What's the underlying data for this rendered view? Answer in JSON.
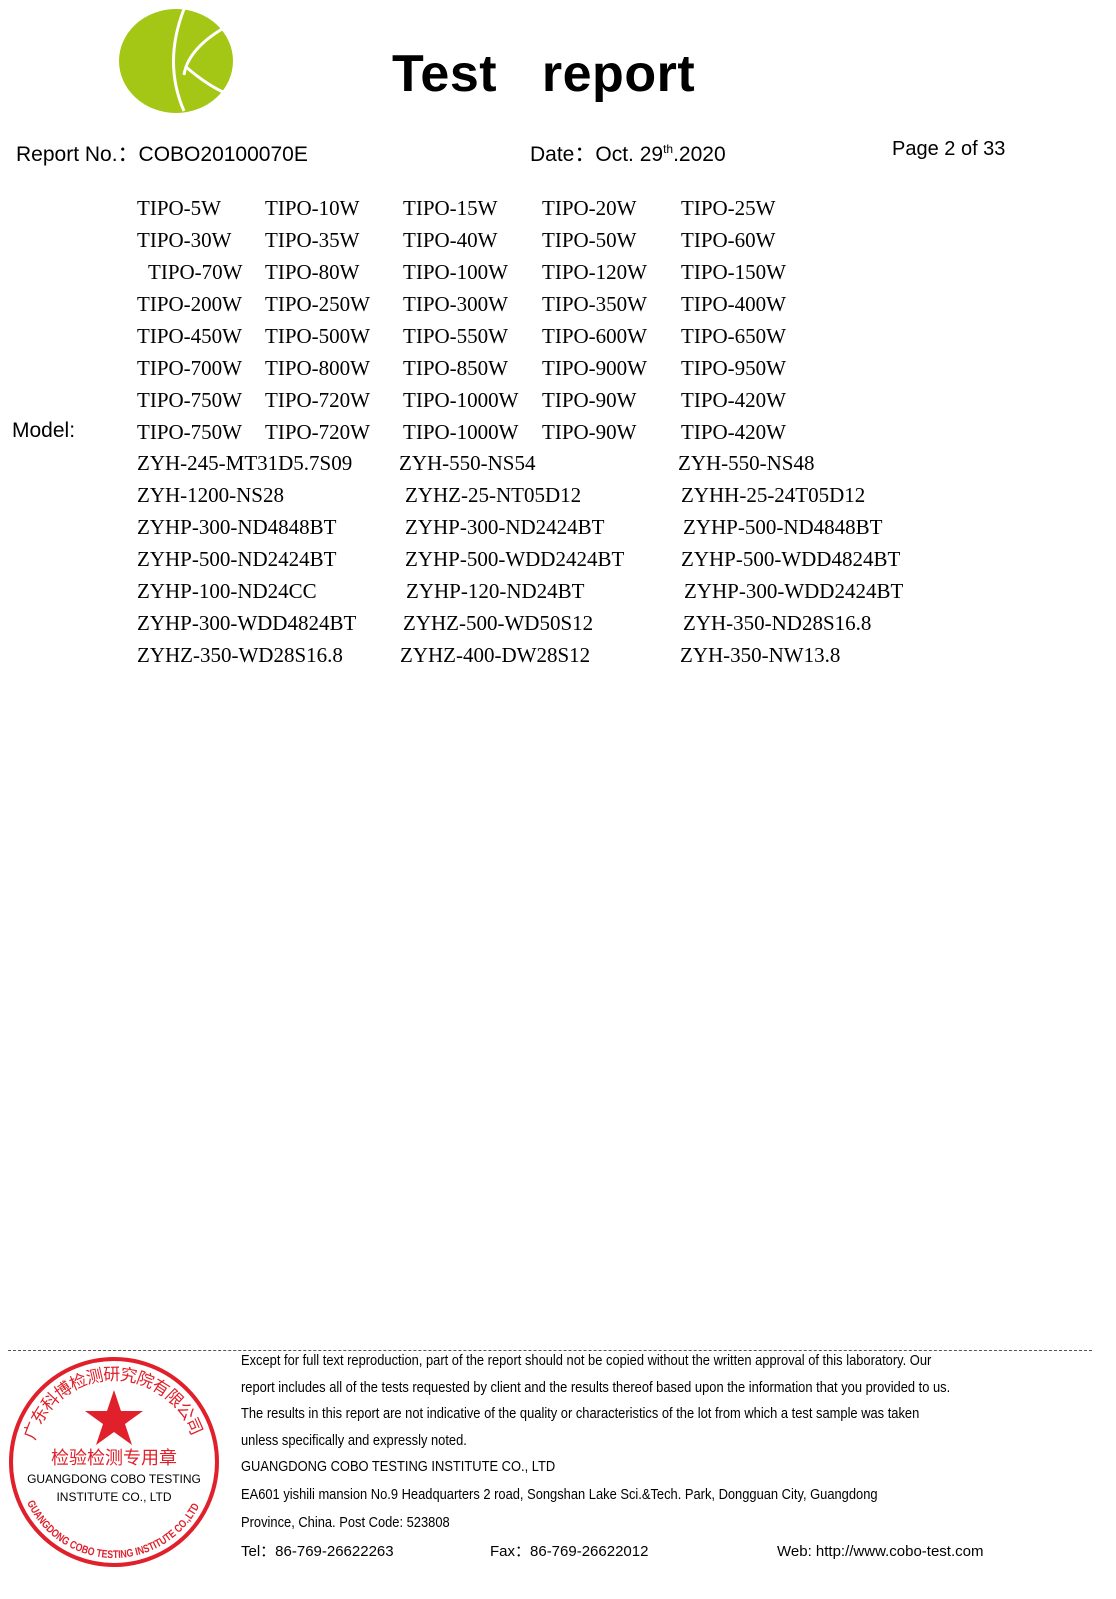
{
  "header": {
    "title": "Test   report",
    "report_no_label": "Report No.：",
    "report_no": "COBO20100070E",
    "date_label": "Date：",
    "date_prefix": "Oct. 29",
    "date_sup": "th",
    "date_suffix": ".2020",
    "page": "Page 2 of 33",
    "logo_color": "#a4c614"
  },
  "model": {
    "label": "Model:",
    "tipo_rows": [
      [
        "TIPO-5W",
        "TIPO-10W",
        "TIPO-15W",
        "TIPO-20W",
        "TIPO-25W"
      ],
      [
        "TIPO-30W",
        "TIPO-35W",
        "TIPO-40W",
        "TIPO-50W",
        "TIPO-60W"
      ],
      [
        "TIPO-70W",
        "TIPO-80W",
        "TIPO-100W",
        "TIPO-120W",
        "TIPO-150W"
      ],
      [
        "TIPO-200W",
        "TIPO-250W",
        "TIPO-300W",
        "TIPO-350W",
        "TIPO-400W"
      ],
      [
        "TIPO-450W",
        "TIPO-500W",
        "TIPO-550W",
        "TIPO-600W",
        "TIPO-650W"
      ],
      [
        "TIPO-700W",
        "TIPO-800W",
        "TIPO-850W",
        "TIPO-900W",
        "TIPO-950W"
      ],
      [
        "TIPO-750W",
        "TIPO-720W",
        "TIPO-1000W",
        "TIPO-90W",
        "TIPO-420W"
      ],
      [
        "TIPO-750W",
        "TIPO-720W",
        "TIPO-1000W",
        "TIPO-90W",
        "TIPO-420W"
      ]
    ],
    "zyh_rows": [
      [
        "ZYH-245-MT31D5.7S09",
        "ZYH-550-NS54",
        "ZYH-550-NS48"
      ],
      [
        "ZYH-1200-NS28",
        "ZYHZ-25-NT05D12",
        "ZYHH-25-24T05D12"
      ],
      [
        "ZYHP-300-ND4848BT",
        "ZYHP-300-ND2424BT",
        "ZYHP-500-ND4848BT"
      ],
      [
        "ZYHP-500-ND2424BT",
        "ZYHP-500-WDD2424BT",
        "ZYHP-500-WDD4824BT"
      ],
      [
        "ZYHP-100-ND24CC",
        "ZYHP-120-ND24BT",
        "ZYHP-300-WDD2424BT"
      ],
      [
        "ZYHP-300-WDD4824BT",
        "ZYHZ-500-WD50S12",
        "ZYH-350-ND28S16.8"
      ],
      [
        "ZYHZ-350-WD28S16.8",
        "ZYHZ-400-DW28S12",
        "ZYH-350-NW13.8"
      ]
    ]
  },
  "footer": {
    "lines": [
      "Except for full text reproduction, part of the report should not be copied without the written approval of this laboratory. Our",
      "report includes all of the tests requested by client and the results thereof based upon the information that you provided to us.",
      "The results in this report are not indicative of the quality or characteristics of the lot from which a test sample was taken",
      "unless specifically and expressly noted.",
      "GUANGDONG COBO TESTING INSTITUTE CO., LTD",
      "EA601 yishili mansion No.9 Headquarters 2 road, Songshan Lake Sci.&Tech. Park, Dongguan City, Guangdong",
      "Province, China. Post Code: 523808"
    ],
    "tel": "Tel：86-769-26622263",
    "fax": "Fax：86-769-26622012",
    "web": "Web: http://www.cobo-test.com",
    "stamp": {
      "color": "#e0202a",
      "ring_cn": "广东科博检测研究院有限公司",
      "center_cn": "检验检测专用章",
      "ring_en": "GUANGDONG COBO TESTING INSTITUTE CO.,LTD",
      "overlay_line1": "GUANGDONG COBO TESTING",
      "overlay_line2": "INSTITUTE CO., LTD"
    }
  }
}
